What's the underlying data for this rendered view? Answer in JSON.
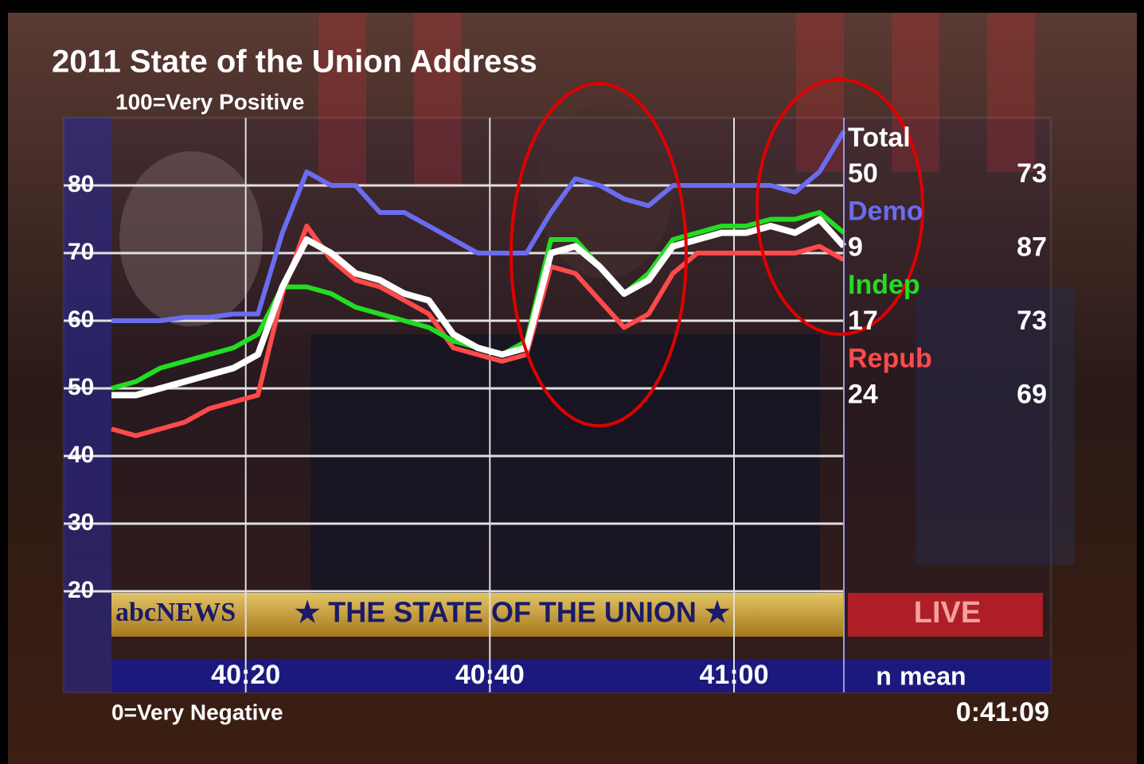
{
  "chart_data": {
    "type": "line",
    "title": "2011 State of the Union Address",
    "subtitle": "100=Very Positive",
    "bottom_note": "0=Very Negative",
    "timestamp": "0:41:09",
    "annotations": [
      "abcNEWS",
      "★ THE STATE OF THE UNION ★",
      "LIVE"
    ],
    "legend_header": [
      "n",
      "mean"
    ],
    "x": [
      2409,
      2411,
      2413,
      2415,
      2417,
      2419,
      2421,
      2423,
      2425,
      2427,
      2429,
      2431,
      2433,
      2435,
      2437,
      2439,
      2441,
      2443,
      2445,
      2447,
      2449,
      2451,
      2453,
      2455,
      2457,
      2459,
      2461,
      2463,
      2465,
      2467,
      2469
    ],
    "xlim": [
      2409,
      2469
    ],
    "xticks": [
      {
        "value": 2420,
        "label": "40:20"
      },
      {
        "value": 2440,
        "label": "40:40"
      },
      {
        "value": 2460,
        "label": "41:00"
      }
    ],
    "ylim": [
      10,
      90
    ],
    "yticks": [
      20,
      30,
      40,
      50,
      60,
      70,
      80
    ],
    "grid": true,
    "series": [
      {
        "name": "Total",
        "color": "#ffffff",
        "n": 50,
        "mean": 73,
        "values": [
          49,
          49,
          50,
          51,
          52,
          53,
          55,
          65,
          72,
          70,
          67,
          66,
          64,
          63,
          58,
          56,
          55,
          56,
          70,
          71,
          68,
          64,
          66,
          71,
          72,
          73,
          73,
          74,
          73,
          75,
          71
        ]
      },
      {
        "name": "Demo",
        "color": "#6a6cf0",
        "n": 9,
        "mean": 87,
        "values": [
          60,
          60,
          60,
          60.5,
          60.5,
          61,
          61,
          73,
          82,
          80,
          80,
          76,
          76,
          74,
          72,
          70,
          70,
          70,
          76,
          81,
          80,
          78,
          77,
          80,
          80,
          80,
          80,
          80,
          79,
          82,
          88
        ]
      },
      {
        "name": "Indep",
        "color": "#22dd22",
        "n": 17,
        "mean": 73,
        "values": [
          50,
          51,
          53,
          54,
          55,
          56,
          58,
          65,
          65,
          64,
          62,
          61,
          60,
          59,
          57,
          56,
          55,
          57,
          72,
          72,
          68,
          64,
          67,
          72,
          73,
          74,
          74,
          75,
          75,
          76,
          73
        ]
      },
      {
        "name": "Repub",
        "color": "#ff4a4a",
        "n": 24,
        "mean": 69,
        "values": [
          44,
          43,
          44,
          45,
          47,
          48,
          49,
          64,
          74,
          69,
          66,
          65,
          63,
          61,
          56,
          55,
          54,
          55,
          68,
          67,
          63,
          59,
          61,
          67,
          70,
          70,
          70,
          70,
          70,
          71,
          69
        ]
      }
    ]
  }
}
